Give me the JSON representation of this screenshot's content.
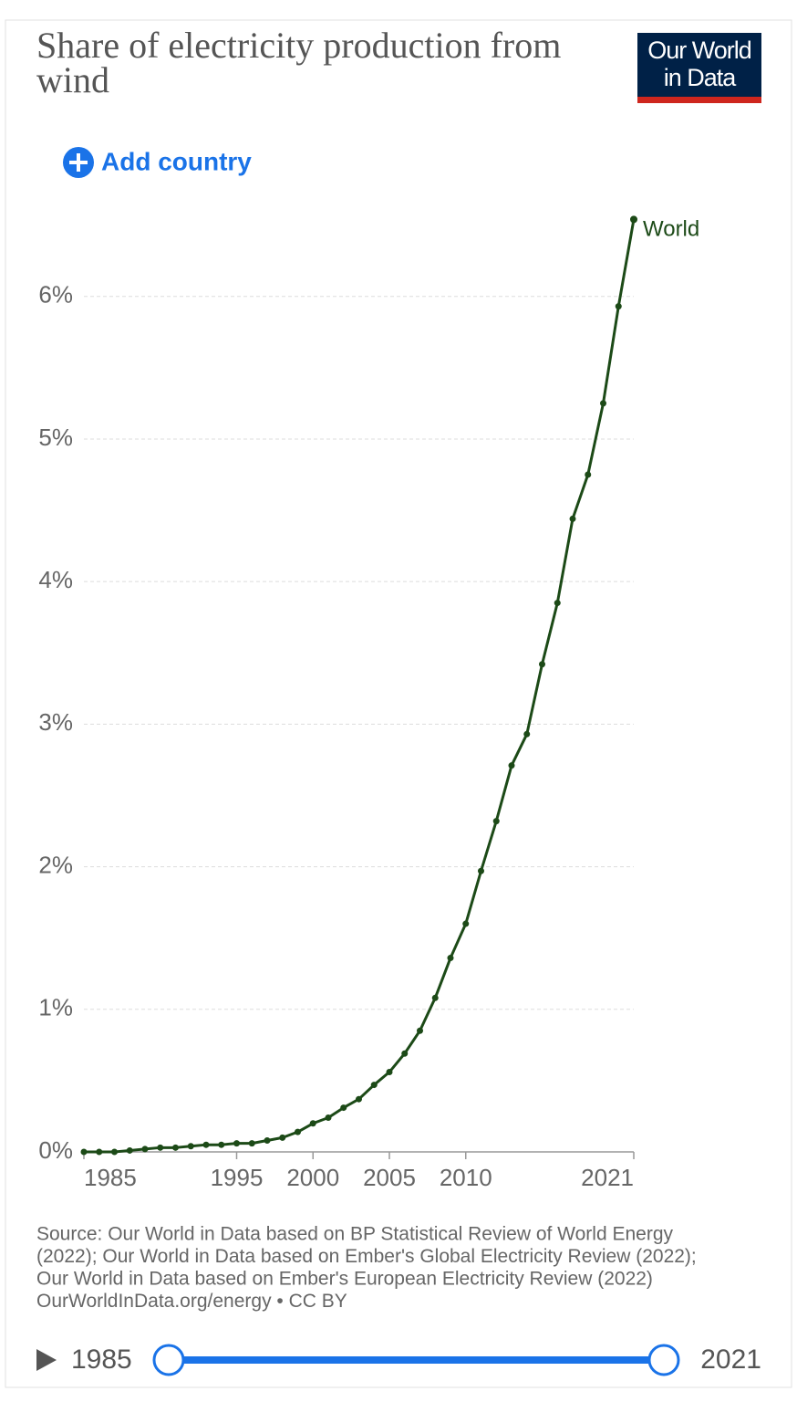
{
  "header": {
    "title_lines": [
      "Share of electricity production from",
      "wind"
    ],
    "logo_lines": [
      "Our World",
      "in Data"
    ],
    "add_country": "Add country"
  },
  "chart_data": {
    "type": "line",
    "x": [
      1985,
      1986,
      1987,
      1988,
      1989,
      1990,
      1991,
      1992,
      1993,
      1994,
      1995,
      1996,
      1997,
      1998,
      1999,
      2000,
      2001,
      2002,
      2003,
      2004,
      2005,
      2006,
      2007,
      2008,
      2009,
      2010,
      2011,
      2012,
      2013,
      2014,
      2015,
      2016,
      2017,
      2018,
      2019,
      2020,
      2021
    ],
    "series": [
      {
        "name": "World",
        "color": "#1c4a17",
        "values": [
          0.0,
          0.0,
          0.0,
          0.01,
          0.02,
          0.03,
          0.03,
          0.04,
          0.05,
          0.05,
          0.06,
          0.06,
          0.08,
          0.1,
          0.14,
          0.2,
          0.24,
          0.31,
          0.37,
          0.47,
          0.56,
          0.69,
          0.85,
          1.08,
          1.36,
          1.6,
          1.97,
          2.32,
          2.71,
          2.93,
          3.42,
          3.85,
          4.44,
          4.75,
          5.25,
          5.93,
          6.54
        ]
      }
    ],
    "xlim": [
      1985,
      2021
    ],
    "xticks": [
      1985,
      1995,
      2000,
      2005,
      2010,
      2021
    ],
    "ylim": [
      0,
      6.6
    ],
    "yticks": [
      {
        "value": 0,
        "label": "0%"
      },
      {
        "value": 1,
        "label": "1%"
      },
      {
        "value": 2,
        "label": "2%"
      },
      {
        "value": 3,
        "label": "3%"
      },
      {
        "value": 4,
        "label": "4%"
      },
      {
        "value": 5,
        "label": "5%"
      },
      {
        "value": 6,
        "label": "6%"
      }
    ],
    "grid": true
  },
  "footer": {
    "source_lines": [
      "Source: Our World in Data based on BP Statistical Review of World Energy",
      "(2022); Our World in Data based on Ember's Global Electricity Review (2022);",
      "Our World in Data based on Ember's European Electricity Review (2022)",
      "OurWorldInData.org/energy • CC BY"
    ]
  },
  "timeline": {
    "start": 1985,
    "end": 2021
  }
}
